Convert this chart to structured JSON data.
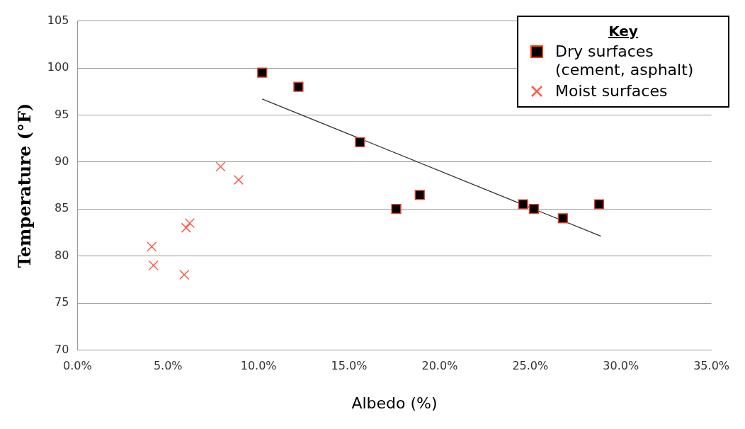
{
  "chart_data": {
    "type": "scatter",
    "xlabel": "Albedo (%)",
    "ylabel": "Temperature (°F)",
    "legend_title": "Key",
    "legend": "top right",
    "grid": "y",
    "xlim": [
      0,
      35
    ],
    "xticks": [
      {
        "value": 0,
        "label": "0.0%"
      },
      {
        "value": 5,
        "label": "5.0%"
      },
      {
        "value": 10,
        "label": "10.0%"
      },
      {
        "value": 15,
        "label": "15.0%"
      },
      {
        "value": 20,
        "label": "20.0%"
      },
      {
        "value": 25,
        "label": "25.0%"
      },
      {
        "value": 30,
        "label": "30.0%"
      },
      {
        "value": 35,
        "label": "35.0%"
      }
    ],
    "ylim": [
      70,
      105
    ],
    "yticks": [
      70,
      75,
      80,
      85,
      90,
      95,
      100,
      105
    ],
    "series": [
      {
        "name": "Dry surfaces (cement, asphalt)",
        "marker": "square",
        "color": "#000000",
        "x": [
          10.2,
          12.2,
          15.6,
          17.6,
          18.9,
          24.6,
          25.2,
          26.8,
          28.8
        ],
        "values": [
          99.5,
          98.0,
          92.1,
          85.0,
          86.5,
          85.5,
          85.0,
          84.0,
          85.5
        ]
      },
      {
        "name": "Moist surfaces",
        "marker": "cross",
        "color": "#ff5a4a",
        "x": [
          4.1,
          4.2,
          5.9,
          6.0,
          6.2,
          7.9,
          8.9
        ],
        "values": [
          81.0,
          79.0,
          78.0,
          83.0,
          83.5,
          89.5,
          88.1
        ]
      },
      {
        "type": "line",
        "marker": "none",
        "color": "#333333",
        "x": [
          10.2,
          28.9
        ],
        "values": [
          96.7,
          82.1
        ]
      }
    ]
  }
}
